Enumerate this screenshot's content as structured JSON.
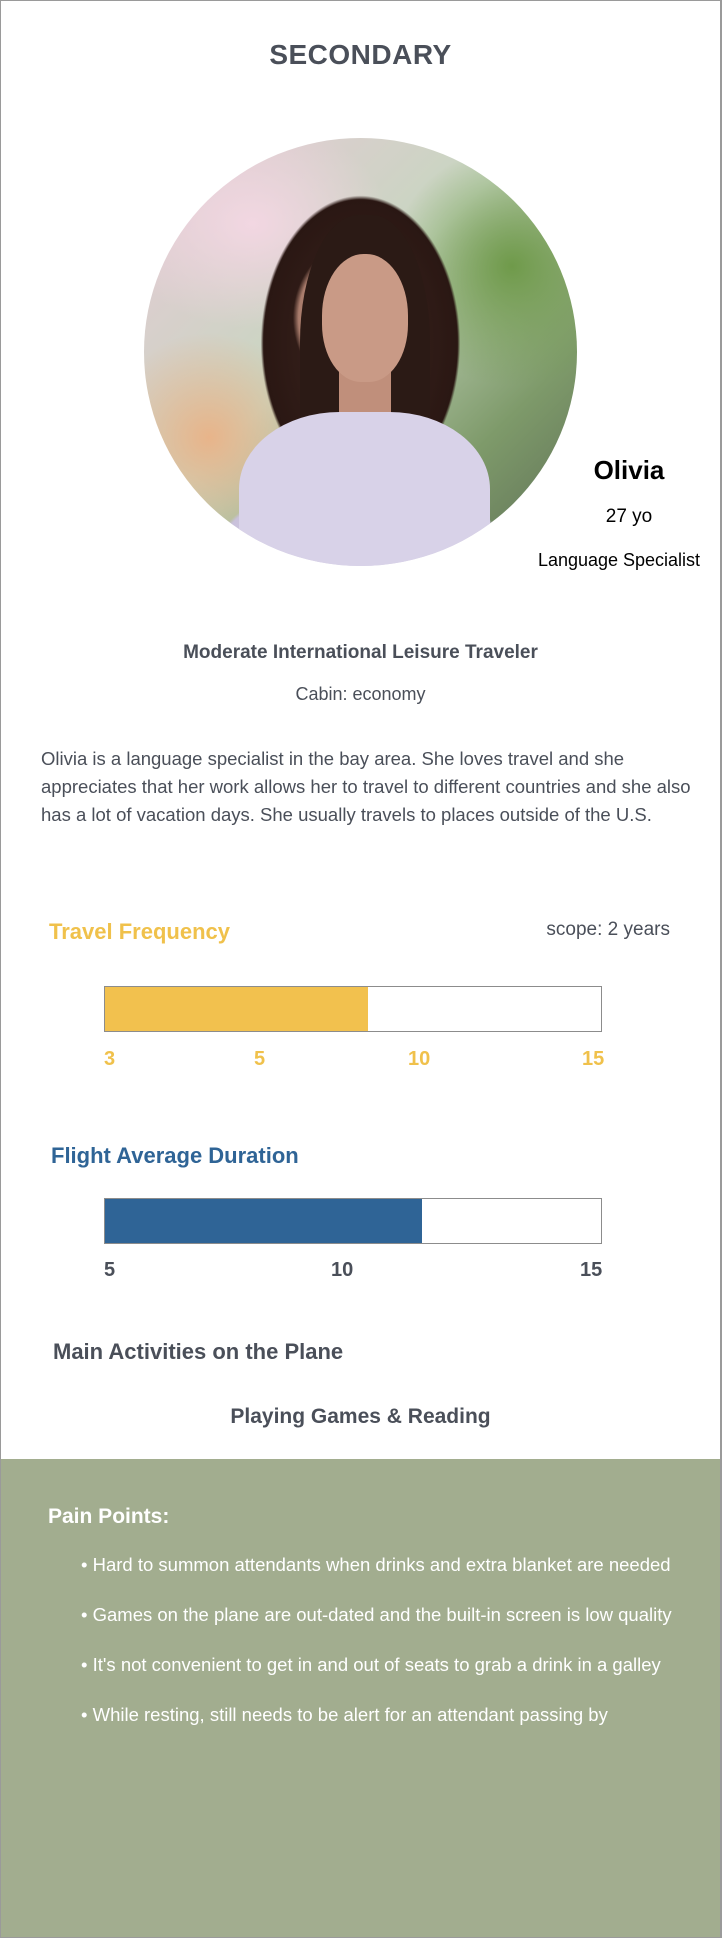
{
  "page": {
    "title": "SECONDARY"
  },
  "persona": {
    "name": "Olivia",
    "age": "27 yo",
    "job": "Language Specialist",
    "traveler_type": "Moderate International Leisure Traveler",
    "cabin": "Cabin: economy",
    "bio": "Olivia is a language specialist in the bay area. She loves travel and she appreciates that her work allows her to travel to different countries and she also has a lot of vacation days. She usually travels to places outside of the U.S."
  },
  "travel_frequency": {
    "label": "Travel Frequency",
    "scope": "scope: 2 years",
    "ticks": [
      "3",
      "5",
      "10",
      "15"
    ],
    "fill_fraction": 0.53,
    "color": "#f2c14e"
  },
  "flight_duration": {
    "label": "Flight Average Duration",
    "ticks": [
      "5",
      "10",
      "15"
    ],
    "fill_fraction": 0.64,
    "color": "#2f6496"
  },
  "activities": {
    "label": "Main Activities on the Plane",
    "value": "Playing Games & Reading"
  },
  "pain_points": {
    "title": "Pain Points:",
    "items": [
      "• Hard to summon attendants when drinks and extra blanket are needed",
      "• Games on the plane are out-dated and the built-in screen is low quality",
      "• It's not convenient to get in and out of seats to grab a drink in a galley",
      "• While resting, still needs to be alert for an attendant passing by"
    ],
    "background": "#a2ad8f"
  }
}
